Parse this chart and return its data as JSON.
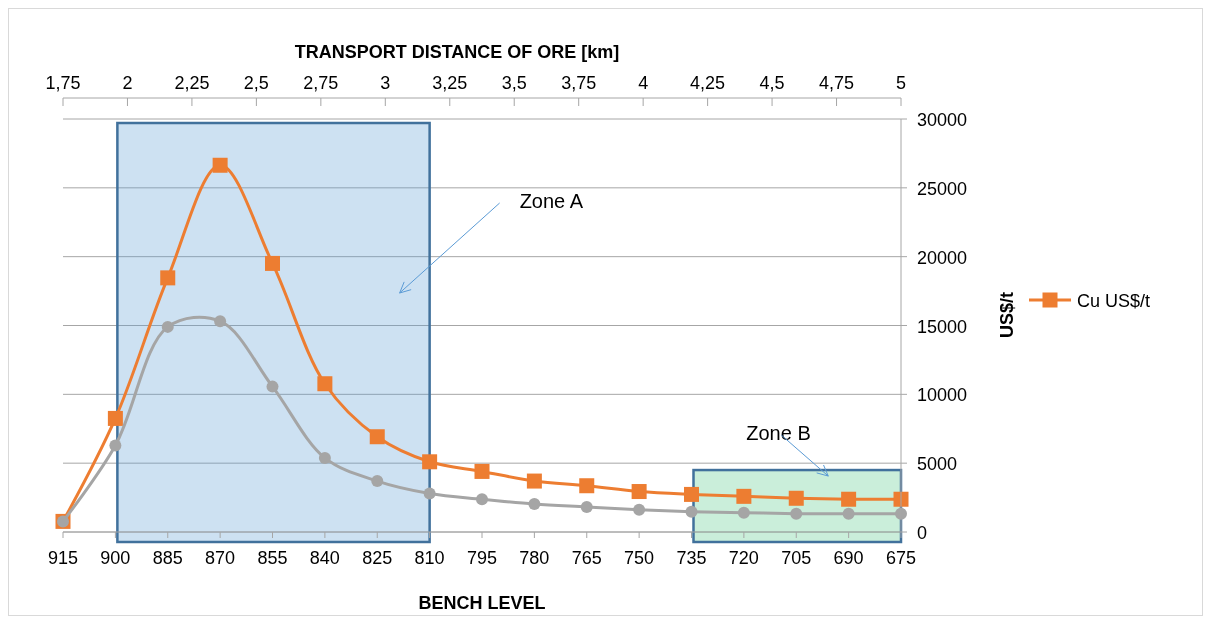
{
  "chart_data": {
    "type": "line",
    "xlabel": "BENCH LEVEL",
    "x2label": "TRANSPORT DISTANCE OF ORE [km]",
    "ylabel": "US$/t",
    "categories": [
      "915",
      "900",
      "885",
      "870",
      "855",
      "840",
      "825",
      "810",
      "795",
      "780",
      "765",
      "750",
      "735",
      "720",
      "705",
      "690",
      "675"
    ],
    "x2lim": [
      1.75,
      5
    ],
    "x2ticks": [
      {
        "value": 1.75,
        "label": "1,75"
      },
      2,
      {
        "value": 2.25,
        "label": "2,25"
      },
      {
        "value": 2.5,
        "label": "2,5"
      },
      {
        "value": 2.75,
        "label": "2,75"
      },
      3,
      {
        "value": 3.25,
        "label": "3,25"
      },
      {
        "value": 3.5,
        "label": "3,5"
      },
      {
        "value": 3.75,
        "label": "3,75"
      },
      4,
      {
        "value": 4.25,
        "label": "4,25"
      },
      {
        "value": 4.5,
        "label": "4,5"
      },
      {
        "value": 4.75,
        "label": "4,75"
      },
      5
    ],
    "ylim": [
      0,
      30000
    ],
    "yticks": [
      0,
      5000,
      10000,
      15000,
      20000,
      25000,
      30000
    ],
    "grid": "y",
    "legend": "right",
    "series": [
      {
        "name": "Cu US$/t",
        "color": "#ed7d31",
        "marker": "square",
        "values": [
          770,
          8250,
          18460,
          26640,
          19510,
          10770,
          6920,
          5100,
          4400,
          3700,
          3360,
          2940,
          2730,
          2590,
          2450,
          2380,
          2380
        ]
      },
      {
        "color": "#a5a5a5",
        "marker": "circle",
        "values": [
          770,
          6290,
          14900,
          15310,
          10560,
          5380,
          3700,
          2800,
          2380,
          2030,
          1820,
          1610,
          1470,
          1400,
          1330,
          1330,
          1330
        ]
      }
    ],
    "bands": [
      {
        "axis": "x",
        "from": "900",
        "to": "810",
        "label": "Zone A",
        "color": "#5b9bd5"
      },
      {
        "axis": "x",
        "from": "735",
        "to": "675",
        "label": "Zone B",
        "color": "#4fc886"
      }
    ]
  }
}
